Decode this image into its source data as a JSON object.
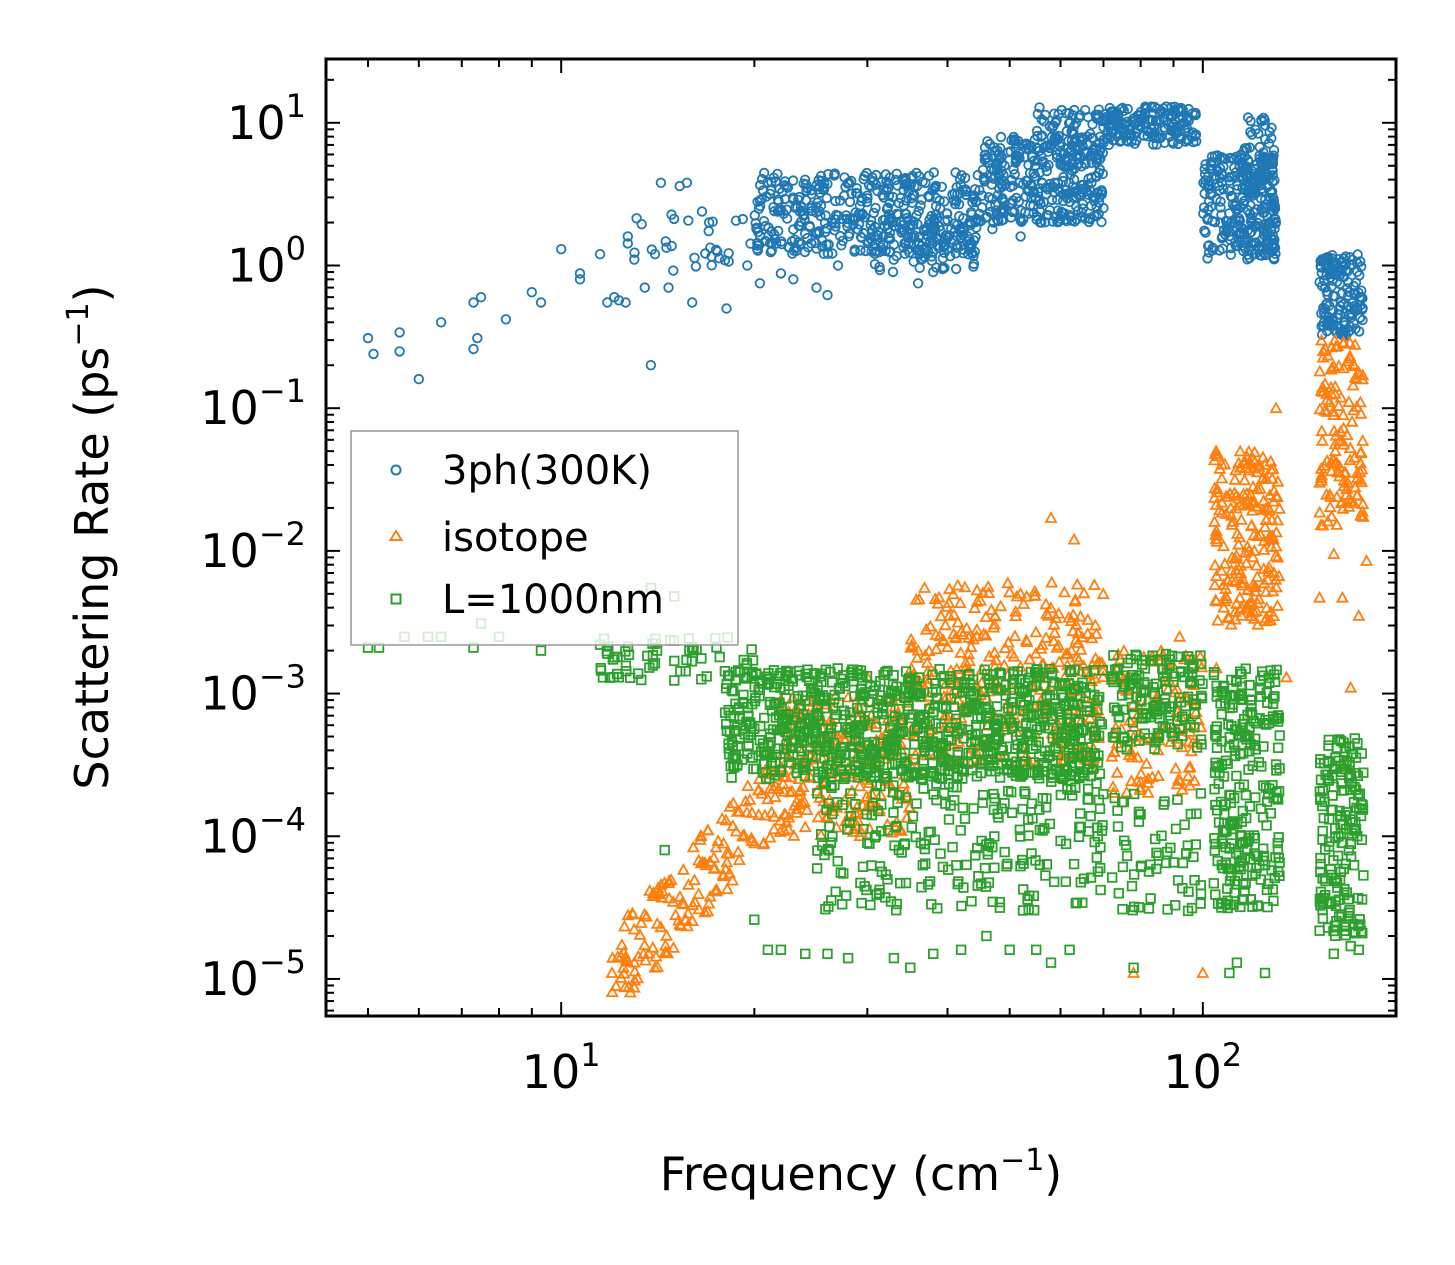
{
  "chart_data": {
    "type": "scatter",
    "xscale": "log",
    "yscale": "log",
    "xlabel": "Frequency (cm",
    "xlabel_sup": "−1",
    "xlabel_end": ")",
    "ylabel": "Scattering Rate (ps",
    "ylabel_sup": "−1",
    "ylabel_end": ")",
    "xlim": [
      4.3,
      200
    ],
    "ylim": [
      5.5e-06,
      28
    ],
    "x_ticks": [
      {
        "value": 10,
        "base": "10",
        "exp": "1"
      },
      {
        "value": 100,
        "base": "10",
        "exp": "2"
      }
    ],
    "y_ticks": [
      {
        "value": 10,
        "base": "10",
        "exp": "1"
      },
      {
        "value": 1,
        "base": "10",
        "exp": "0"
      },
      {
        "value": 0.1,
        "base": "10",
        "exp": "−1"
      },
      {
        "value": 0.01,
        "base": "10",
        "exp": "−2"
      },
      {
        "value": 0.001,
        "base": "10",
        "exp": "−3"
      },
      {
        "value": 0.0001,
        "base": "10",
        "exp": "−4"
      },
      {
        "value": 1e-05,
        "base": "10",
        "exp": "−5"
      }
    ],
    "legend_position": "center-left",
    "series": [
      {
        "name": "3ph(300K)",
        "marker": "circle",
        "color": "#1f77b4",
        "points": [
          [
            5.0,
            0.31
          ],
          [
            5.1,
            0.24
          ],
          [
            5.6,
            0.34
          ],
          [
            5.6,
            0.25
          ],
          [
            6.0,
            0.16
          ],
          [
            6.5,
            0.4
          ],
          [
            7.3,
            0.26
          ],
          [
            7.4,
            0.31
          ],
          [
            7.3,
            0.55
          ],
          [
            7.5,
            0.6
          ],
          [
            8.2,
            0.42
          ],
          [
            9.0,
            0.65
          ],
          [
            9.3,
            0.55
          ],
          [
            10.0,
            1.3
          ],
          [
            10.7,
            0.8
          ],
          [
            10.7,
            0.88
          ],
          [
            11.5,
            1.2
          ],
          [
            11.8,
            0.55
          ],
          [
            12.1,
            0.6
          ],
          [
            12.3,
            0.57
          ],
          [
            12.6,
            0.55
          ],
          [
            12.7,
            1.6
          ],
          [
            13.0,
            1.1
          ],
          [
            13.5,
            0.7
          ],
          [
            13.8,
            0.2
          ],
          [
            14.0,
            1.2
          ],
          [
            14.3,
            3.8
          ],
          [
            14.7,
            0.7
          ],
          [
            15.3,
            3.6
          ],
          [
            15.7,
            3.8
          ],
          [
            16.0,
            0.55
          ],
          [
            17.0,
            2.0
          ],
          [
            18.1,
            0.5
          ],
          [
            19.5,
            1.0
          ],
          [
            20.4,
            0.75
          ],
          [
            22.0,
            0.88
          ],
          [
            23.0,
            0.8
          ],
          [
            25.0,
            0.7
          ],
          [
            26.0,
            0.62
          ],
          [
            27.0,
            1.0
          ],
          [
            33.0,
            1.4
          ],
          [
            36.0,
            0.75
          ],
          [
            38.0,
            0.9
          ],
          [
            44.0,
            1.5
          ],
          [
            47.0,
            1.8
          ],
          [
            52.0,
            1.6
          ],
          [
            56.0,
            2.0
          ],
          [
            63.0,
            4.0
          ],
          [
            66.0,
            8.0
          ],
          [
            69.0,
            3.0
          ]
        ],
        "bands": [
          {
            "from": 12.0,
            "to": 20.0,
            "y_low": 0.9,
            "y_high": 2.4,
            "count": 30
          },
          {
            "from": 20.0,
            "to": 45.0,
            "y_low": 1.2,
            "y_high": 4.5,
            "count": 420
          },
          {
            "from": 30.0,
            "to": 45.0,
            "y_low": 0.9,
            "y_high": 2.2,
            "count": 90
          },
          {
            "from": 45.0,
            "to": 70.0,
            "y_low": 2.0,
            "y_high": 8.0,
            "count": 320
          },
          {
            "from": 55.0,
            "to": 70.0,
            "y_low": 5.0,
            "y_high": 13.0,
            "count": 80
          },
          {
            "from": 70.0,
            "to": 98.0,
            "y_low": 7.0,
            "y_high": 13.0,
            "count": 180
          },
          {
            "from": 100.0,
            "to": 130.0,
            "y_low": 1.1,
            "y_high": 6.0,
            "count": 260
          },
          {
            "from": 115.0,
            "to": 130.0,
            "y_low": 1.5,
            "y_high": 11.0,
            "count": 80
          },
          {
            "from": 152.0,
            "to": 178.0,
            "y_low": 0.32,
            "y_high": 1.2,
            "count": 150
          }
        ]
      },
      {
        "name": "isotope",
        "marker": "triangle",
        "color": "#ff7f0e",
        "points": [
          [
            12.0,
            1.1e-05
          ],
          [
            12.5,
            1.2e-05
          ],
          [
            13.0,
            1.3e-05
          ],
          [
            14.0,
            1.2e-05
          ],
          [
            22.0,
            0.0009
          ],
          [
            30.0,
            0.0013
          ],
          [
            36.0,
            0.002
          ],
          [
            42.0,
            0.0027
          ],
          [
            52.0,
            0.005
          ],
          [
            58.0,
            0.017
          ],
          [
            63.0,
            0.012
          ],
          [
            68.0,
            0.003
          ],
          [
            78.0,
            1.1e-05
          ],
          [
            92.0,
            0.0025
          ],
          [
            100.0,
            1.1e-05
          ],
          [
            105.0,
            0.0015
          ],
          [
            118.0,
            0.01
          ],
          [
            125.0,
            0.04
          ],
          [
            130.0,
            0.1
          ],
          [
            135.0,
            0.0013
          ],
          [
            152.0,
            0.0047
          ],
          [
            160.0,
            0.0095
          ],
          [
            165.0,
            0.0047
          ],
          [
            168.0,
            0.0003
          ],
          [
            170.0,
            0.0011
          ],
          [
            175.0,
            0.0035
          ],
          [
            180.0,
            0.0085
          ]
        ],
        "bands": [
          {
            "from": 12.0,
            "to": 22.0,
            "y_low": 1.1e-05,
            "y_high": 0.0002,
            "trend": "rising",
            "count": 160
          },
          {
            "from": 22.0,
            "to": 35.0,
            "y_low": 0.0001,
            "y_high": 0.001,
            "count": 220
          },
          {
            "from": 35.0,
            "to": 70.0,
            "y_low": 0.0003,
            "y_high": 0.006,
            "count": 320
          },
          {
            "from": 72.0,
            "to": 100.0,
            "y_low": 0.0002,
            "y_high": 0.002,
            "count": 120
          },
          {
            "from": 104.0,
            "to": 132.0,
            "y_low": 0.003,
            "y_high": 0.05,
            "count": 200
          },
          {
            "from": 152.0,
            "to": 178.0,
            "y_low": 0.015,
            "y_high": 0.3,
            "count": 130
          }
        ]
      },
      {
        "name": "L=1000nm",
        "marker": "square",
        "color": "#2ca02c",
        "points": [
          [
            5.0,
            0.0021
          ],
          [
            5.2,
            0.0021
          ],
          [
            5.7,
            0.0025
          ],
          [
            6.2,
            0.0025
          ],
          [
            6.5,
            0.0025
          ],
          [
            7.3,
            0.0021
          ],
          [
            7.5,
            0.0031
          ],
          [
            8.0,
            0.0025
          ],
          [
            9.3,
            0.002
          ],
          [
            11.5,
            0.0022
          ],
          [
            12.3,
            0.0013
          ],
          [
            13.8,
            0.0055
          ],
          [
            14.5,
            8e-05
          ],
          [
            15.0,
            0.0048
          ],
          [
            20.0,
            2.6e-05
          ],
          [
            21.0,
            1.6e-05
          ],
          [
            22.0,
            1.6e-05
          ],
          [
            24.0,
            1.5e-05
          ],
          [
            26.0,
            1.5e-05
          ],
          [
            28.0,
            1.4e-05
          ],
          [
            33.0,
            1.4e-05
          ],
          [
            35.0,
            1.2e-05
          ],
          [
            38.0,
            1.5e-05
          ],
          [
            42.0,
            1.6e-05
          ],
          [
            46.0,
            2e-05
          ],
          [
            50.0,
            1.6e-05
          ],
          [
            55.0,
            1.6e-05
          ],
          [
            58.0,
            1.3e-05
          ],
          [
            62.0,
            1.6e-05
          ],
          [
            78.0,
            1.2e-05
          ],
          [
            110.0,
            1.1e-05
          ],
          [
            113.0,
            1.3e-05
          ],
          [
            125.0,
            1.1e-05
          ],
          [
            160.0,
            1.5e-05
          ],
          [
            170.0,
            1.7e-05
          ],
          [
            175.0,
            1.6e-05
          ]
        ],
        "bands": [
          {
            "from": 11.5,
            "to": 20.0,
            "y_low": 0.0012,
            "y_high": 0.0025,
            "count": 60
          },
          {
            "from": 18.0,
            "to": 70.0,
            "y_low": 0.00025,
            "y_high": 0.0015,
            "count": 900
          },
          {
            "from": 25.0,
            "to": 70.0,
            "y_low": 3e-05,
            "y_high": 0.0003,
            "count": 260
          },
          {
            "from": 72.0,
            "to": 100.0,
            "y_low": 0.0004,
            "y_high": 0.0019,
            "count": 150
          },
          {
            "from": 72.0,
            "to": 100.0,
            "y_low": 3e-05,
            "y_high": 0.0002,
            "count": 60
          },
          {
            "from": 104.0,
            "to": 132.0,
            "y_low": 3e-05,
            "y_high": 0.0015,
            "count": 260
          },
          {
            "from": 152.0,
            "to": 178.0,
            "y_low": 2e-05,
            "y_high": 0.0005,
            "count": 170
          }
        ]
      }
    ]
  }
}
